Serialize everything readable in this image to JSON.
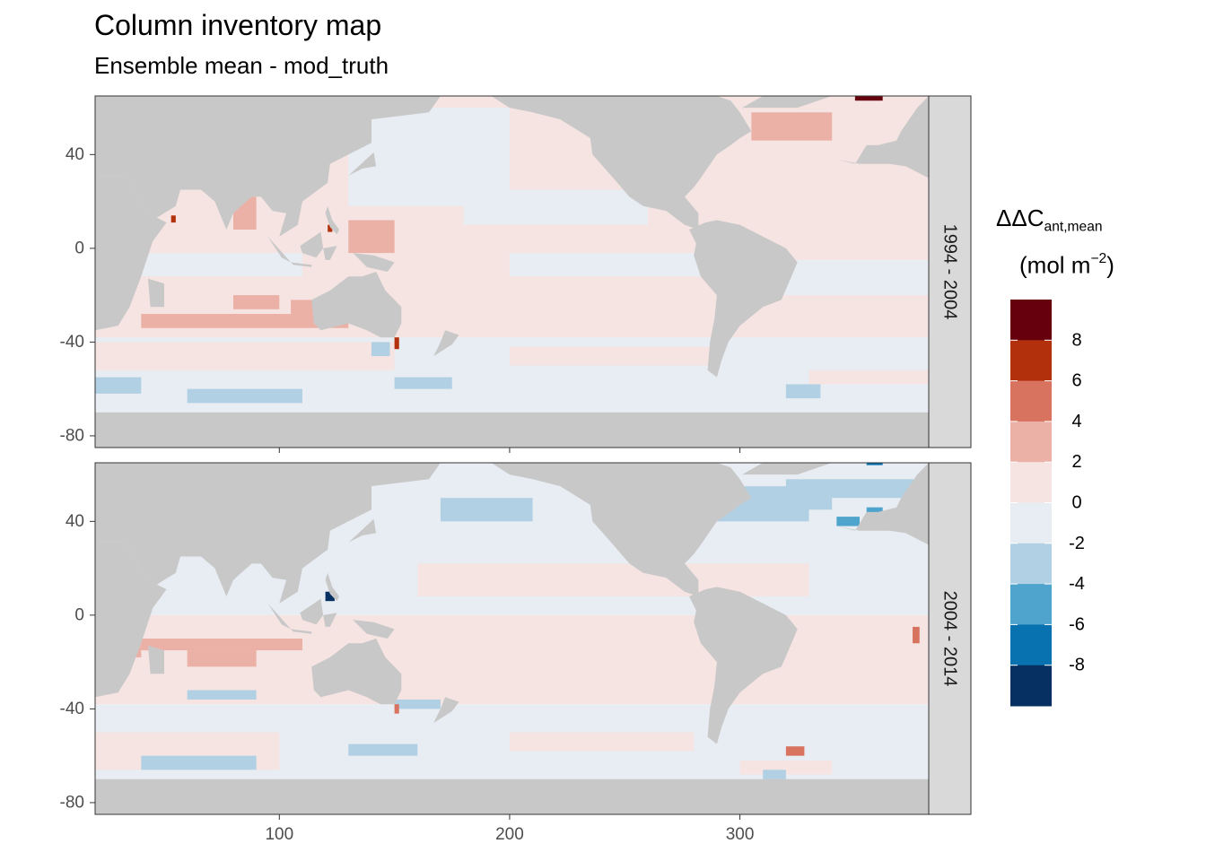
{
  "title": "Column inventory map",
  "subtitle": "Ensemble mean - mod_truth",
  "legend": {
    "title_main": "ΔΔC",
    "title_sub": "ant,mean",
    "unit_open": "(mol m",
    "unit_sup": "−2",
    "unit_close": ")",
    "tick_labels": [
      "8",
      "6",
      "4",
      "2",
      "0",
      "-2",
      "-4",
      "-6",
      "-8"
    ],
    "colors": [
      "#67000d",
      "#b2300c",
      "#d7735e",
      "#ebb0a6",
      "#f5e4e2",
      "#e8edf3",
      "#b2d0e4",
      "#4fa4cd",
      "#0872b1",
      "#053061"
    ]
  },
  "chart_data": [
    {
      "type": "heatmap",
      "panel": "1994 - 2004",
      "xlim": [
        20,
        382
      ],
      "ylim": [
        -85,
        65
      ],
      "x_ticks": [
        100,
        200,
        300
      ],
      "y_ticks": [
        40,
        0,
        -40,
        -80
      ],
      "y_tick_labels": [
        "40",
        "0",
        "-40",
        "-80"
      ],
      "grid": false
    },
    {
      "type": "heatmap",
      "panel": "2004 - 2014",
      "xlim": [
        20,
        382
      ],
      "ylim": [
        -85,
        65
      ],
      "x_ticks": [
        100,
        200,
        300
      ],
      "x_tick_labels": [
        "100",
        "200",
        "300"
      ],
      "y_ticks": [
        40,
        0,
        -40,
        -80
      ],
      "y_tick_labels": [
        "40",
        "0",
        "-40",
        "-80"
      ],
      "grid": false
    }
  ],
  "map_colors": {
    "land": "#c8c8c8",
    "ocean_neutral_pos": "#f5e4e2",
    "ocean_neutral_neg": "#e8edf3",
    "strip": "#d9d9d9",
    "frame": "#333333"
  }
}
